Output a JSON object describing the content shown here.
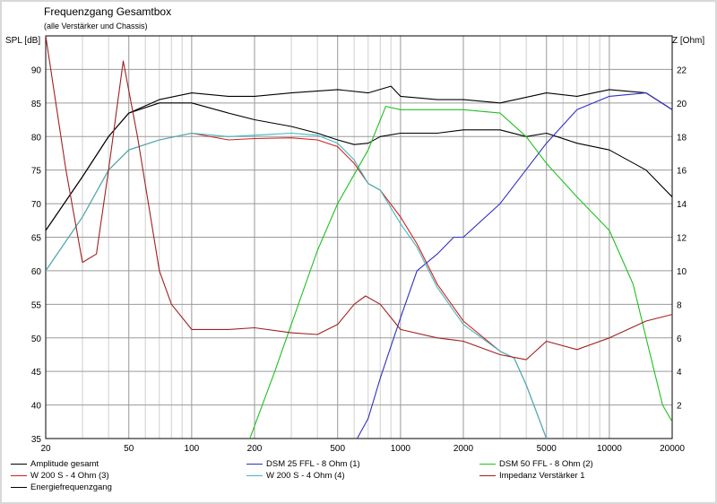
{
  "title": "Frequenzgang Gesamtbox",
  "subtitle": "(alle Verstärker und Chassis)",
  "chart_data": {
    "type": "line",
    "title": "Frequenzgang Gesamtbox",
    "subtitle": "(alle Verstärker und Chassis)",
    "xscale": "log",
    "xlim": [
      20,
      20000
    ],
    "x_ticks": [
      20,
      50,
      100,
      200,
      500,
      1000,
      2000,
      5000,
      10000,
      20000
    ],
    "ylabel_left": "SPL [dB]",
    "ylim_left": [
      35,
      95
    ],
    "y_ticks_left": [
      35,
      40,
      45,
      50,
      55,
      60,
      65,
      70,
      75,
      80,
      85,
      90
    ],
    "ylabel_right": "Z [Ohm]",
    "ylim_right": [
      0,
      24
    ],
    "y_ticks_right": [
      2,
      4,
      6,
      8,
      10,
      12,
      14,
      16,
      18,
      20,
      22
    ],
    "grid": true,
    "legend_position": "bottom",
    "series": [
      {
        "name": "Amplitude gesamt",
        "color": "#000000",
        "axis": "left",
        "points": [
          [
            20,
            66
          ],
          [
            30,
            74
          ],
          [
            40,
            80
          ],
          [
            50,
            83.5
          ],
          [
            70,
            85.5
          ],
          [
            100,
            86.5
          ],
          [
            150,
            86
          ],
          [
            200,
            86
          ],
          [
            300,
            86.5
          ],
          [
            500,
            87
          ],
          [
            700,
            86.5
          ],
          [
            900,
            87.5
          ],
          [
            1000,
            86
          ],
          [
            1500,
            85.5
          ],
          [
            2000,
            85.5
          ],
          [
            3000,
            85
          ],
          [
            5000,
            86.5
          ],
          [
            7000,
            86
          ],
          [
            10000,
            87
          ],
          [
            15000,
            86.5
          ],
          [
            20000,
            84
          ]
        ]
      },
      {
        "name": "W 200 S - 4 Ohm (3)",
        "color": "#d02020",
        "axis": "left",
        "points": [
          [
            20,
            60
          ],
          [
            30,
            68
          ],
          [
            40,
            75
          ],
          [
            50,
            78
          ],
          [
            70,
            79.5
          ],
          [
            100,
            80.5
          ],
          [
            150,
            79.5
          ],
          [
            200,
            79.7
          ],
          [
            300,
            79.8
          ],
          [
            400,
            79.5
          ],
          [
            500,
            78.5
          ],
          [
            600,
            76
          ],
          [
            700,
            73
          ],
          [
            800,
            72
          ],
          [
            1000,
            68
          ],
          [
            1200,
            64
          ],
          [
            1500,
            58
          ],
          [
            2000,
            52.5
          ],
          [
            3000,
            48
          ],
          [
            3500,
            47
          ],
          [
            4000,
            43
          ],
          [
            5000,
            35
          ]
        ]
      },
      {
        "name": "Energiefrequenzgang",
        "color": "#000000",
        "axis": "left",
        "points": [
          [
            20,
            66
          ],
          [
            30,
            74
          ],
          [
            40,
            80
          ],
          [
            50,
            83.5
          ],
          [
            70,
            85
          ],
          [
            100,
            85
          ],
          [
            150,
            83.5
          ],
          [
            200,
            82.5
          ],
          [
            300,
            81.5
          ],
          [
            400,
            80.5
          ],
          [
            500,
            79.5
          ],
          [
            600,
            78.8
          ],
          [
            700,
            79
          ],
          [
            800,
            80
          ],
          [
            1000,
            80.5
          ],
          [
            1500,
            80.5
          ],
          [
            2000,
            81
          ],
          [
            3000,
            81
          ],
          [
            4000,
            80
          ],
          [
            5000,
            80.5
          ],
          [
            7000,
            79
          ],
          [
            10000,
            78
          ],
          [
            15000,
            75
          ],
          [
            20000,
            71
          ]
        ]
      },
      {
        "name": "DSM 25 FFL - 8 Ohm (1)",
        "color": "#3030c0",
        "axis": "left",
        "points": [
          [
            620,
            35
          ],
          [
            700,
            38
          ],
          [
            800,
            44
          ],
          [
            1000,
            53
          ],
          [
            1200,
            60
          ],
          [
            1500,
            62.5
          ],
          [
            1800,
            65
          ],
          [
            2000,
            65
          ],
          [
            3000,
            70
          ],
          [
            5000,
            79
          ],
          [
            7000,
            84
          ],
          [
            10000,
            86
          ],
          [
            15000,
            86.5
          ],
          [
            20000,
            84
          ]
        ]
      },
      {
        "name": "W 200 S - 4 Ohm (4)",
        "color": "#40b8c0",
        "axis": "left",
        "points": [
          [
            20,
            60
          ],
          [
            30,
            68
          ],
          [
            40,
            75
          ],
          [
            50,
            78
          ],
          [
            70,
            79.5
          ],
          [
            100,
            80.5
          ],
          [
            150,
            80
          ],
          [
            200,
            80.2
          ],
          [
            300,
            80.5
          ],
          [
            400,
            80.2
          ],
          [
            500,
            79
          ],
          [
            600,
            76.5
          ],
          [
            700,
            73
          ],
          [
            800,
            72
          ],
          [
            1000,
            67
          ],
          [
            1200,
            63.5
          ],
          [
            1500,
            57.5
          ],
          [
            2000,
            52
          ],
          [
            3000,
            48
          ],
          [
            3500,
            47
          ],
          [
            4000,
            43
          ],
          [
            5000,
            35
          ]
        ]
      },
      {
        "name": "DSM 50 FFL - 8 Ohm (2)",
        "color": "#20c020",
        "axis": "left",
        "points": [
          [
            190,
            35
          ],
          [
            250,
            45
          ],
          [
            300,
            52
          ],
          [
            400,
            63
          ],
          [
            500,
            70
          ],
          [
            700,
            78
          ],
          [
            850,
            84.5
          ],
          [
            1000,
            84
          ],
          [
            1500,
            84
          ],
          [
            2000,
            84
          ],
          [
            3000,
            83.5
          ],
          [
            4000,
            80
          ],
          [
            5000,
            76
          ],
          [
            7000,
            71
          ],
          [
            10000,
            66
          ],
          [
            13000,
            58
          ],
          [
            15000,
            50
          ],
          [
            18000,
            40
          ],
          [
            20000,
            37.5
          ]
        ]
      },
      {
        "name": "Impedanz Verstärker 1",
        "color": "#a02020",
        "axis": "right",
        "points": [
          [
            20,
            24
          ],
          [
            25,
            16
          ],
          [
            30,
            10.5
          ],
          [
            35,
            11
          ],
          [
            40,
            16
          ],
          [
            47,
            22.5
          ],
          [
            55,
            18
          ],
          [
            70,
            10
          ],
          [
            80,
            8
          ],
          [
            100,
            6.5
          ],
          [
            150,
            6.5
          ],
          [
            200,
            6.6
          ],
          [
            300,
            6.3
          ],
          [
            400,
            6.2
          ],
          [
            500,
            6.8
          ],
          [
            600,
            8
          ],
          [
            680,
            8.5
          ],
          [
            800,
            8
          ],
          [
            1000,
            6.5
          ],
          [
            1500,
            6
          ],
          [
            2000,
            5.8
          ],
          [
            3000,
            5
          ],
          [
            4000,
            4.7
          ],
          [
            5000,
            5.8
          ],
          [
            7000,
            5.3
          ],
          [
            10000,
            6
          ],
          [
            15000,
            7
          ],
          [
            20000,
            7.4
          ]
        ]
      }
    ]
  },
  "legend": [
    {
      "label": "Amplitude gesamt",
      "color": "#000000"
    },
    {
      "label": "DSM 25 FFL - 8 Ohm (1)",
      "color": "#3030c0"
    },
    {
      "label": "DSM 50 FFL - 8 Ohm (2)",
      "color": "#20c020"
    },
    {
      "label": "W 200 S - 4 Ohm (3)",
      "color": "#d02020"
    },
    {
      "label": "W 200 S - 4 Ohm (4)",
      "color": "#40b8c0"
    },
    {
      "label": "Impedanz Verstärker 1",
      "color": "#a02020"
    },
    {
      "label": "Energiefrequenzgang",
      "color": "#000000"
    }
  ]
}
